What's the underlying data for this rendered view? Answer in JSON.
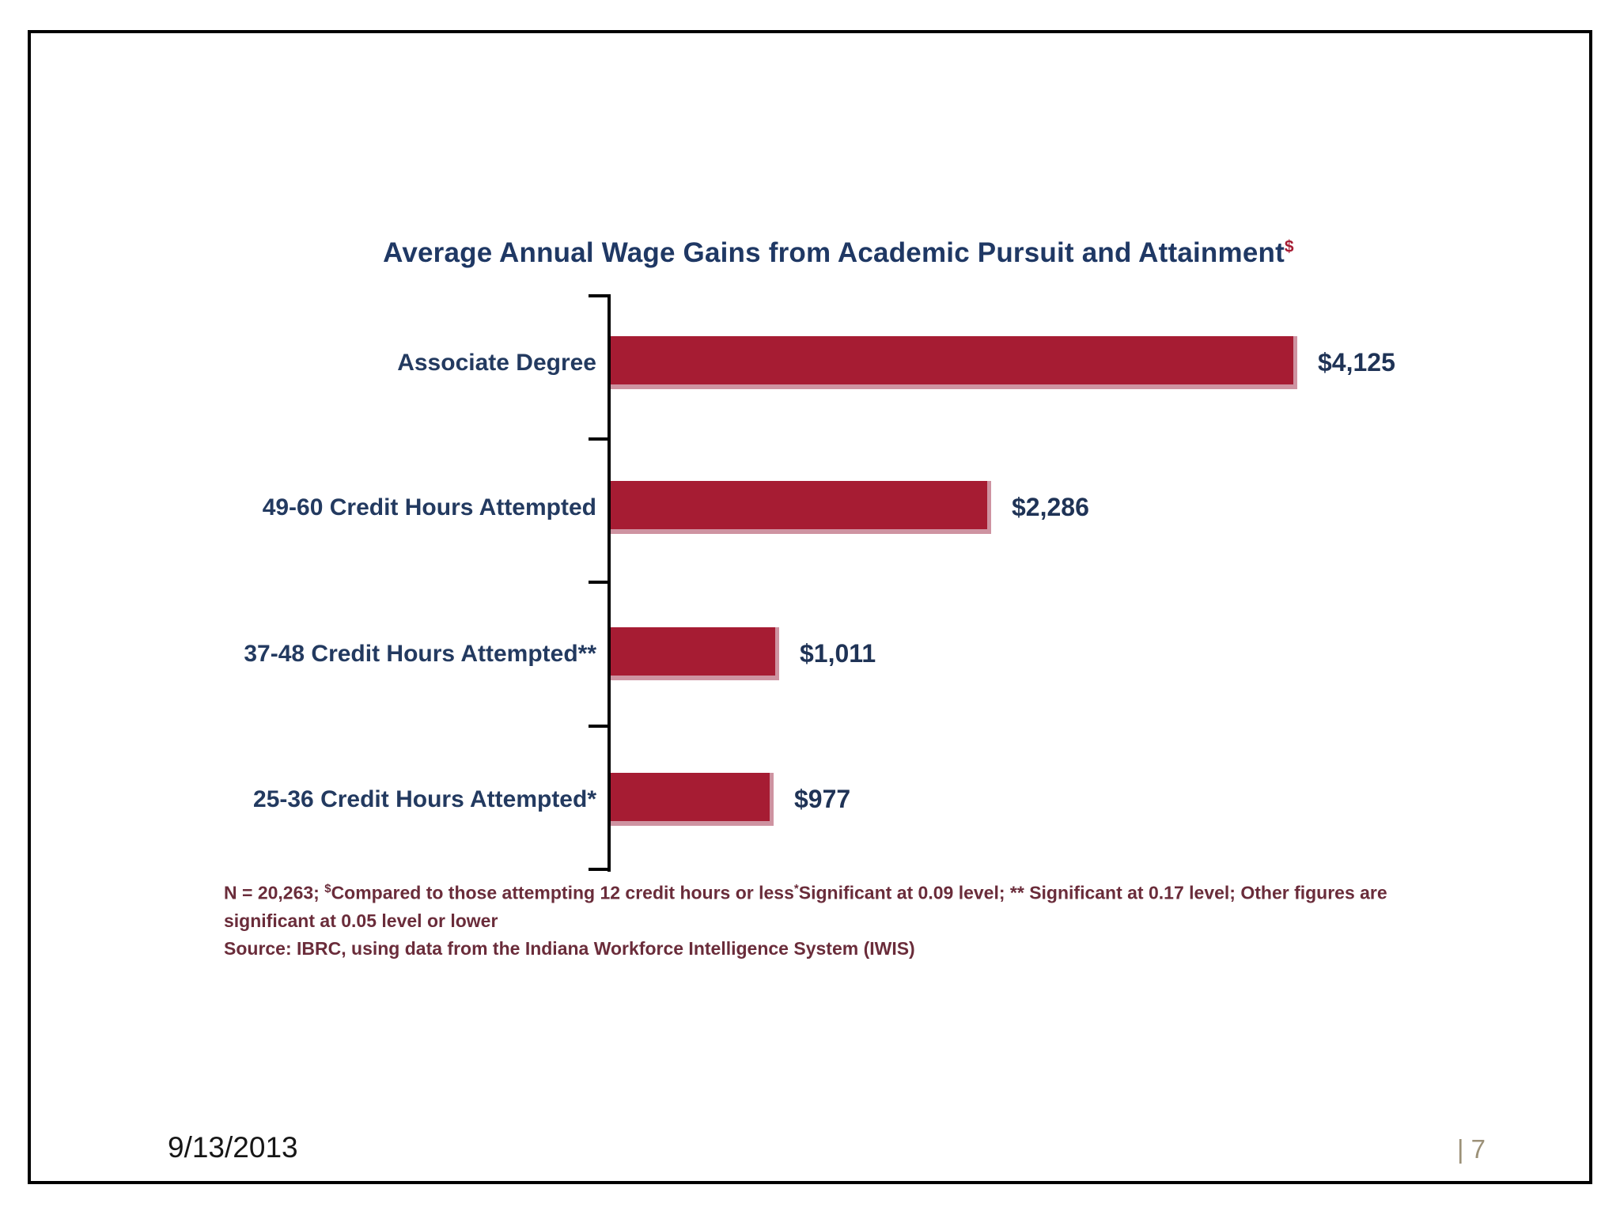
{
  "slide": {
    "title": {
      "text": "Average Annual Wage Gains from Academic Pursuit and Attainment",
      "superscript": "$"
    },
    "footnotes": {
      "line1_prefix": "N = 20,263; ",
      "line1_sup1": "$",
      "line1_mid": "Compared to those attempting 12 credit hours or less",
      "line1_sup2": "*",
      "line1_suffix": "Significant at 0.09 level; ** Significant at 0.17 level; Other figures are",
      "line2": "significant at 0.05 level or lower",
      "source": "Source: IBRC, using data from the Indiana Workforce Intelligence System (IWIS)"
    },
    "footer": {
      "date": "9/13/2013",
      "page_divider": "|",
      "page_number": "7"
    }
  },
  "chart_data": {
    "type": "bar",
    "orientation": "horizontal",
    "title": "Average Annual Wage Gains from Academic Pursuit and Attainment$",
    "categories": [
      "Associate Degree",
      "49-60 Credit Hours Attempted",
      "37-48 Credit Hours Attempted**",
      "25-36 Credit Hours Attempted*"
    ],
    "values": [
      4125,
      2286,
      1011,
      977
    ],
    "value_labels": [
      "$4,125",
      "$2,286",
      "$1,011",
      "$977"
    ],
    "xlim": [
      0,
      4125
    ],
    "grid": false,
    "legend": false,
    "rows": [
      {
        "label": "Associate Degree",
        "value": 4125,
        "value_label": "$4,125"
      },
      {
        "label": "49-60 Credit Hours Attempted",
        "value": 2286,
        "value_label": "$2,286"
      },
      {
        "label": "37-48 Credit Hours Attempted**",
        "value": 1011,
        "value_label": "$1,011"
      },
      {
        "label": "25-36 Credit Hours Attempted*",
        "value": 977,
        "value_label": "$977"
      }
    ]
  },
  "colors": {
    "bar": "#A61C33",
    "bar_edge": "#CE93A1",
    "title_text": "#1F3864",
    "label_text": "#233A60",
    "value_text": "#1F3356",
    "footnote_text": "#6A2C3A",
    "page_number": "#9C9178",
    "border": "#000000",
    "axis": "#000000"
  }
}
